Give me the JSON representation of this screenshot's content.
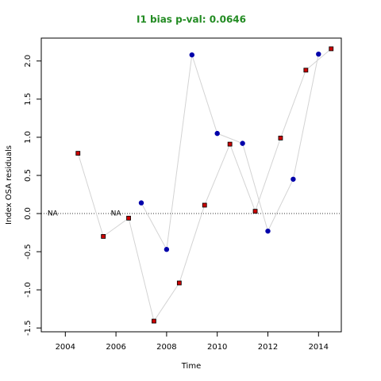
{
  "chart_data": {
    "type": "scatter",
    "title": "I1 bias p-val: 0.0646",
    "title_color": "#228b22",
    "x_label": "Time",
    "y_label": "Index OSA residuals",
    "xlim": [
      2003.05,
      2014.9
    ],
    "ylim": [
      -1.55,
      2.3
    ],
    "xticks": [
      2004,
      2006,
      2008,
      2010,
      2012,
      2014
    ],
    "yticks": [
      -1.5,
      {
        "value": -1,
        "label": "-1.0"
      },
      -0.5,
      {
        "value": 0,
        "label": "0.0"
      },
      0.5,
      {
        "value": 1,
        "label": "1.0"
      },
      1.5,
      {
        "value": 2,
        "label": "2.0"
      }
    ],
    "hline": 0,
    "line_color": "#d3d3d3",
    "series": [
      {
        "color": "#cc0000",
        "marker": "square",
        "x": [
          2004.5,
          2005.5,
          2006.5,
          2007.5,
          2008.5,
          2009.5,
          2010.5,
          2011.5,
          2012.5,
          2013.5,
          2014.5
        ],
        "values": [
          0.79,
          -0.3,
          -0.06,
          -1.41,
          -0.91,
          0.11,
          0.91,
          0.03,
          0.99,
          1.88,
          2.16
        ]
      },
      {
        "color": "#0000aa",
        "marker": "circle",
        "x": [
          2007,
          2008,
          2009,
          2010,
          2011,
          2012,
          2013,
          2014
        ],
        "values": [
          0.14,
          -0.47,
          2.08,
          1.05,
          0.92,
          -0.23,
          0.45,
          2.09
        ]
      }
    ],
    "annotations": [
      {
        "text": "NA",
        "x": 2003.5,
        "y": 0
      },
      {
        "text": "NA",
        "x": 2006,
        "y": 0
      }
    ]
  }
}
